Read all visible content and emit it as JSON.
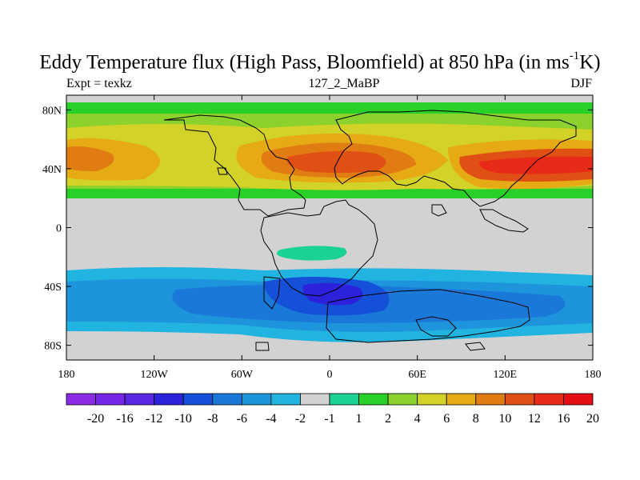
{
  "title": {
    "main": "Eddy Temperature flux (High Pass, Bloomfield) at 850 hPa (in ms",
    "sup": "-1",
    "end": "K)"
  },
  "subtitle": {
    "left": "Expt = texkz",
    "center": "127_2_MaBP",
    "right": "DJF"
  },
  "colors": {
    "land_fill": "#d2d2d2",
    "coast_line": "#000000"
  },
  "map": {
    "lon_range": [
      -180,
      180
    ],
    "lat_range": [
      -90,
      90
    ],
    "x_ticks": [
      {
        "value": -180,
        "label": "180"
      },
      {
        "value": -120,
        "label": "120W"
      },
      {
        "value": -60,
        "label": "60W"
      },
      {
        "value": 0,
        "label": "0"
      },
      {
        "value": 60,
        "label": "60E"
      },
      {
        "value": 120,
        "label": "120E"
      },
      {
        "value": 180,
        "label": "180"
      }
    ],
    "y_ticks": [
      {
        "value": 80,
        "label": "80N"
      },
      {
        "value": 40,
        "label": "40N"
      },
      {
        "value": 0,
        "label": "0"
      },
      {
        "value": -40,
        "label": "40S"
      },
      {
        "value": -80,
        "label": "80S"
      }
    ]
  },
  "colorbar": {
    "colors": [
      "#8b2be6",
      "#7428e6",
      "#5a28e0",
      "#2c22dc",
      "#1450d8",
      "#1a78d8",
      "#1e94dc",
      "#22b4e0",
      "#d2d2d2",
      "#1ad296",
      "#28d028",
      "#8cd22c",
      "#d2d228",
      "#e6aa14",
      "#e07c12",
      "#e05014",
      "#e82a18",
      "#e40e14"
    ],
    "labels": [
      "-20",
      "-16",
      "-12",
      "-10",
      "-8",
      "-6",
      "-4",
      "-2",
      "-1",
      "1",
      "2",
      "4",
      "6",
      "8",
      "10",
      "12",
      "16",
      "20"
    ]
  }
}
